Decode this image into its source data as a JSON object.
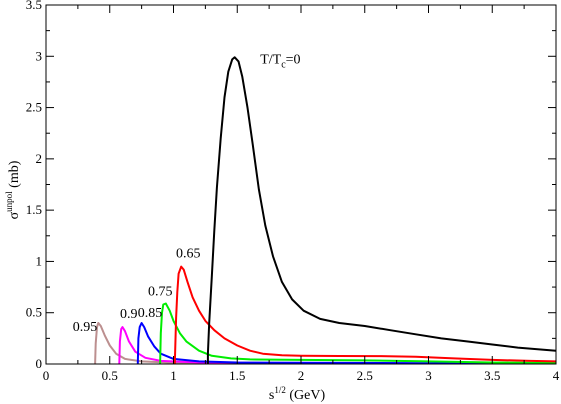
{
  "chart_data": {
    "type": "line",
    "title": "",
    "xlabel": {
      "base": "s",
      "sup": "1/2",
      "rest": " (GeV)"
    },
    "ylabel": {
      "base": "σ",
      "sup": "unpol",
      "rest": " (mb)"
    },
    "xlim": [
      0,
      4
    ],
    "ylim": [
      0,
      3.5
    ],
    "grid": false,
    "legend": "none",
    "x_ticks": [
      {
        "value": 0,
        "label": "0"
      },
      {
        "value": 0.5,
        "label": "0.5"
      },
      {
        "value": 1,
        "label": "1"
      },
      {
        "value": 1.5,
        "label": "1.5"
      },
      {
        "value": 2,
        "label": "2"
      },
      {
        "value": 2.5,
        "label": "2.5"
      },
      {
        "value": 3,
        "label": "3"
      },
      {
        "value": 3.5,
        "label": "3.5"
      },
      {
        "value": 4,
        "label": "4"
      }
    ],
    "y_ticks": [
      {
        "value": 0,
        "label": "0"
      },
      {
        "value": 0.5,
        "label": "0.5"
      },
      {
        "value": 1,
        "label": "1"
      },
      {
        "value": 1.5,
        "label": "1.5"
      },
      {
        "value": 2,
        "label": "2"
      },
      {
        "value": 2.5,
        "label": "2.5"
      },
      {
        "value": 3,
        "label": "3"
      },
      {
        "value": 3.5,
        "label": "3.5"
      }
    ],
    "series": [
      {
        "label": "T/T_c=0",
        "label_main": "T/T",
        "label_sub": "c",
        "label_end": "=0",
        "label_pos": [
          1.68,
          2.93
        ],
        "color": "#000000",
        "points": [
          [
            1.27,
            0
          ],
          [
            1.27,
            0.1
          ],
          [
            1.28,
            0.4
          ],
          [
            1.3,
            0.85
          ],
          [
            1.32,
            1.3
          ],
          [
            1.34,
            1.72
          ],
          [
            1.37,
            2.2
          ],
          [
            1.4,
            2.6
          ],
          [
            1.43,
            2.85
          ],
          [
            1.46,
            2.97
          ],
          [
            1.48,
            2.99
          ],
          [
            1.51,
            2.95
          ],
          [
            1.54,
            2.8
          ],
          [
            1.58,
            2.5
          ],
          [
            1.62,
            2.15
          ],
          [
            1.67,
            1.7
          ],
          [
            1.72,
            1.35
          ],
          [
            1.78,
            1.05
          ],
          [
            1.85,
            0.8
          ],
          [
            1.93,
            0.63
          ],
          [
            2.02,
            0.52
          ],
          [
            2.15,
            0.44
          ],
          [
            2.3,
            0.4
          ],
          [
            2.5,
            0.37
          ],
          [
            2.7,
            0.33
          ],
          [
            2.9,
            0.29
          ],
          [
            3.1,
            0.25
          ],
          [
            3.3,
            0.22
          ],
          [
            3.5,
            0.19
          ],
          [
            3.7,
            0.16
          ],
          [
            4.0,
            0.13
          ]
        ]
      },
      {
        "label": "0.65",
        "label_pos": [
          1.02,
          1.04
        ],
        "color": "#ff0000",
        "points": [
          [
            1.01,
            0
          ],
          [
            1.02,
            0.45
          ],
          [
            1.03,
            0.7
          ],
          [
            1.04,
            0.88
          ],
          [
            1.06,
            0.95
          ],
          [
            1.08,
            0.92
          ],
          [
            1.11,
            0.8
          ],
          [
            1.15,
            0.65
          ],
          [
            1.2,
            0.52
          ],
          [
            1.25,
            0.42
          ],
          [
            1.32,
            0.33
          ],
          [
            1.4,
            0.25
          ],
          [
            1.5,
            0.18
          ],
          [
            1.6,
            0.13
          ],
          [
            1.7,
            0.1
          ],
          [
            1.85,
            0.085
          ],
          [
            2.0,
            0.08
          ],
          [
            2.3,
            0.078
          ],
          [
            2.6,
            0.077
          ],
          [
            2.9,
            0.07
          ],
          [
            3.2,
            0.055
          ],
          [
            3.5,
            0.04
          ],
          [
            3.8,
            0.03
          ],
          [
            4.0,
            0.025
          ]
        ]
      },
      {
        "label": "0.75",
        "label_pos": [
          0.8,
          0.67
        ],
        "color": "#00ee00",
        "points": [
          [
            0.895,
            0
          ],
          [
            0.9,
            0.3
          ],
          [
            0.91,
            0.5
          ],
          [
            0.92,
            0.58
          ],
          [
            0.94,
            0.59
          ],
          [
            0.97,
            0.52
          ],
          [
            1.0,
            0.42
          ],
          [
            1.05,
            0.3
          ],
          [
            1.1,
            0.22
          ],
          [
            1.2,
            0.13
          ],
          [
            1.3,
            0.08
          ],
          [
            1.45,
            0.055
          ],
          [
            1.6,
            0.045
          ],
          [
            2.0,
            0.04
          ],
          [
            2.5,
            0.035
          ],
          [
            3.0,
            0.025
          ],
          [
            3.5,
            0.015
          ],
          [
            4.0,
            0.01
          ]
        ]
      },
      {
        "label": "0.85",
        "label_pos": [
          0.72,
          0.46
        ],
        "color": "#0000ff",
        "points": [
          [
            0.72,
            0
          ],
          [
            0.725,
            0.25
          ],
          [
            0.735,
            0.36
          ],
          [
            0.75,
            0.4
          ],
          [
            0.77,
            0.36
          ],
          [
            0.8,
            0.27
          ],
          [
            0.85,
            0.17
          ],
          [
            0.9,
            0.1
          ],
          [
            1.0,
            0.05
          ],
          [
            1.2,
            0.025
          ],
          [
            1.5,
            0.015
          ],
          [
            2.0,
            0.012
          ],
          [
            3.0,
            0.008
          ],
          [
            4.0,
            0.005
          ]
        ]
      },
      {
        "label": "0.9",
        "label_pos": [
          0.58,
          0.45
        ],
        "color": "#ff00ff",
        "points": [
          [
            0.575,
            0
          ],
          [
            0.58,
            0.22
          ],
          [
            0.59,
            0.34
          ],
          [
            0.6,
            0.36
          ],
          [
            0.62,
            0.32
          ],
          [
            0.65,
            0.22
          ],
          [
            0.7,
            0.12
          ],
          [
            0.78,
            0.06
          ],
          [
            0.9,
            0.03
          ],
          [
            1.2,
            0.015
          ],
          [
            2.0,
            0.008
          ],
          [
            3.0,
            0.005
          ],
          [
            4.0,
            0.003
          ]
        ]
      },
      {
        "label": "0.95",
        "label_pos": [
          0.21,
          0.32
        ],
        "color": "#bc8f8f",
        "points": [
          [
            0.385,
            0
          ],
          [
            0.39,
            0.2
          ],
          [
            0.4,
            0.36
          ],
          [
            0.41,
            0.4
          ],
          [
            0.43,
            0.37
          ],
          [
            0.46,
            0.28
          ],
          [
            0.5,
            0.18
          ],
          [
            0.55,
            0.1
          ],
          [
            0.62,
            0.05
          ],
          [
            0.75,
            0.025
          ],
          [
            1.0,
            0.012
          ],
          [
            1.5,
            0.006
          ],
          [
            2.5,
            0.003
          ],
          [
            4.0,
            0.002
          ]
        ]
      }
    ]
  }
}
